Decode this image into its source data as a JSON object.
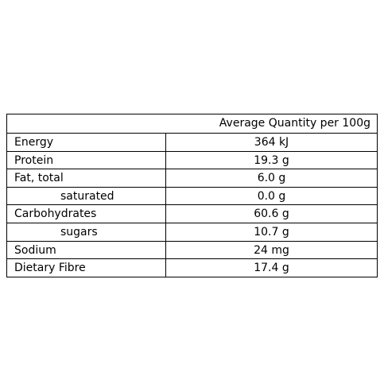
{
  "table": {
    "header": "Average Quantity per 100g",
    "rows": [
      [
        "Energy",
        "364 kJ"
      ],
      [
        "Protein",
        "19.3 g"
      ],
      [
        "Fat, total",
        "6.0 g"
      ],
      [
        "saturated",
        "0.0 g"
      ],
      [
        "Carbohydrates",
        "60.6 g"
      ],
      [
        "sugars",
        "10.7 g"
      ],
      [
        "Sodium",
        "24 mg"
      ],
      [
        "Dietary Fibre",
        "17.4 g"
      ]
    ]
  }
}
